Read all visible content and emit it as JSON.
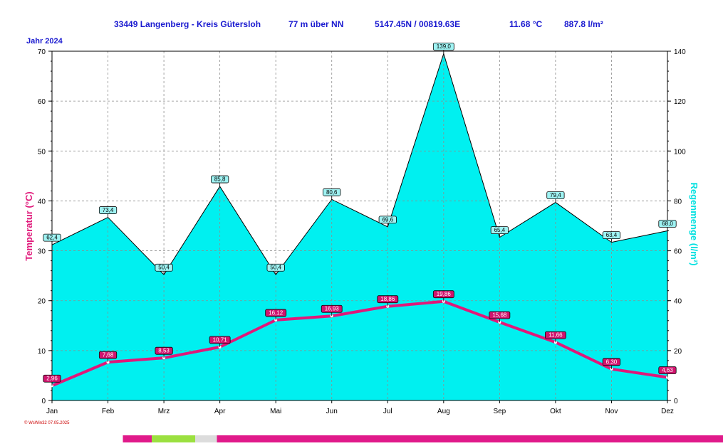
{
  "header": {
    "station": "33449 Langenberg - Kreis Gütersloh",
    "elevation": "77 m über NN",
    "coords": "5147.45N / 00819.63E",
    "mean_temp": "11.68 °C",
    "total_rain": "887.8 l/m²"
  },
  "footer": {
    "credit": "© WsWin32  07.05.2025"
  },
  "colors": {
    "header_text": "#1a1ad0",
    "temp_line": "#e0187a",
    "temp_axis_label": "#e0187a",
    "rain_fill": "#00f0f0",
    "rain_axis_label": "#00e0e0",
    "rain_label_bg": "#9ff3f3",
    "temp_label_bg": "#d0146e"
  },
  "chart_data": {
    "type": "area",
    "title": "Jahr  2024",
    "categories": [
      "Jan",
      "Feb",
      "Mrz",
      "Apr",
      "Mai",
      "Jun",
      "Jul",
      "Aug",
      "Sep",
      "Okt",
      "Nov",
      "Dez"
    ],
    "series": [
      {
        "name": "Regenmenge",
        "axis": "right",
        "kind": "area",
        "values": [
          62.4,
          73.4,
          50.4,
          85.8,
          50.4,
          80.6,
          69.6,
          139.0,
          65.4,
          79.4,
          63.4,
          68.0
        ],
        "labels": [
          "62,4",
          "73,4",
          "50,4",
          "85,8",
          "50,4",
          "80,6",
          "69,6",
          "139,0",
          "65,4",
          "79,4",
          "63,4",
          "68,0"
        ]
      },
      {
        "name": "Temperatur",
        "axis": "left",
        "kind": "line",
        "values": [
          2.96,
          7.68,
          8.53,
          10.71,
          16.12,
          16.93,
          18.86,
          19.86,
          15.68,
          11.66,
          6.3,
          4.63
        ],
        "labels": [
          "2,96",
          "7,68",
          "8,53",
          "10,71",
          "16,12",
          "16,93",
          "18,86",
          "19,86",
          "15,68",
          "11,66",
          "6,30",
          "4,63"
        ]
      }
    ],
    "ylabel": "Temperatur  (°C)",
    "ylabel_right": "Regenmenge  (l/m²)",
    "ylim": [
      0,
      70
    ],
    "ylim_right": [
      0,
      140
    ],
    "yticks": [
      "0",
      "10",
      "20",
      "30",
      "40",
      "50",
      "60",
      "70"
    ],
    "yticks_right": [
      "0",
      "20",
      "40",
      "60",
      "80",
      "100",
      "120",
      "140"
    ],
    "grid": true,
    "legend": "none"
  }
}
